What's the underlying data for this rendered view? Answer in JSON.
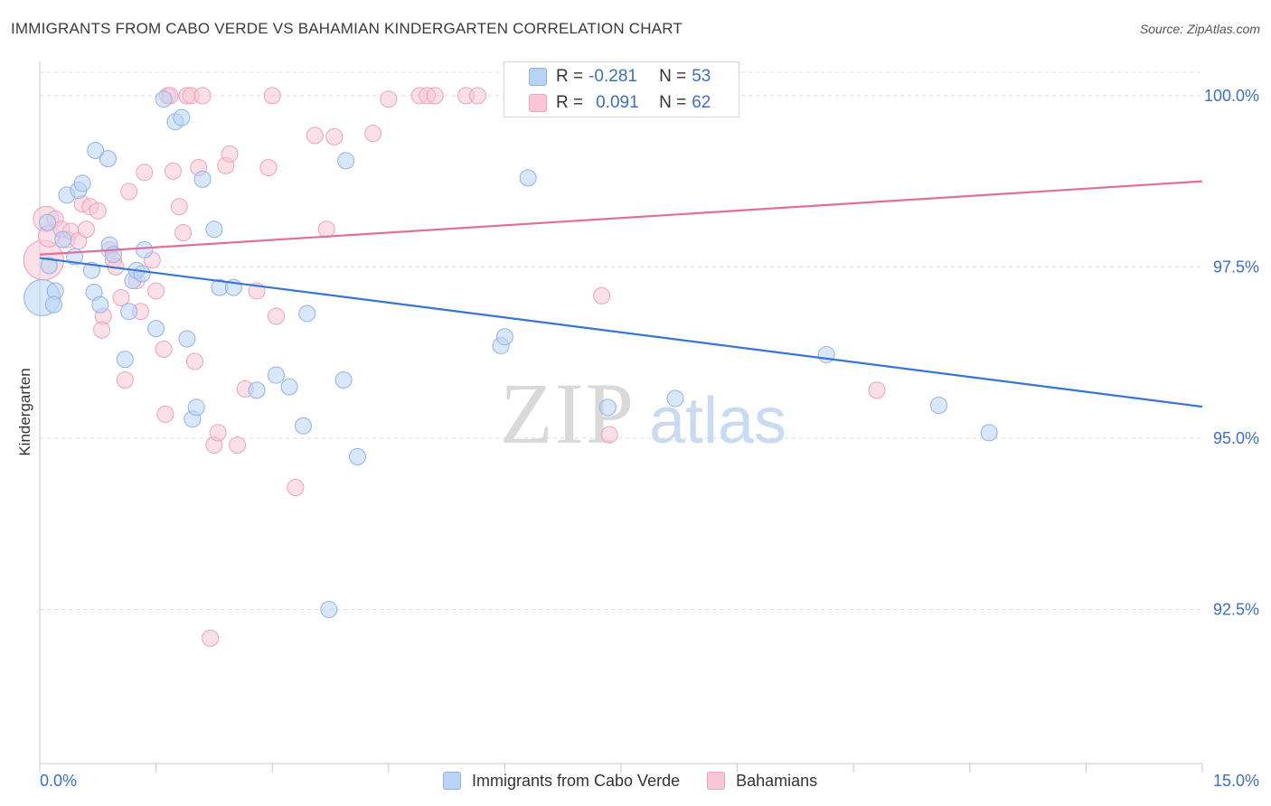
{
  "title": "IMMIGRANTS FROM CABO VERDE VS BAHAMIAN KINDERGARTEN CORRELATION CHART",
  "source": "Source: ZipAtlas.com",
  "watermark": {
    "zip": "ZIP",
    "atlas": "atlas"
  },
  "colors": {
    "blue_fill": "#b9d3f5",
    "blue_stroke": "#8fb3e6",
    "blue_line": "#3575d3",
    "pink_fill": "#f8c6d6",
    "pink_stroke": "#eba3bb",
    "pink_line": "#e07098",
    "axis_label": "#3a6fc9",
    "grid": "#dcdcdc"
  },
  "stats": [
    {
      "r_label": "R = ",
      "r_value": "-0.281",
      "n_label": "N = ",
      "n_value": "53"
    },
    {
      "r_label": "R = ",
      "r_value": "0.091",
      "n_label": "N = ",
      "n_value": "62"
    }
  ],
  "chart_data": {
    "type": "scatter",
    "title": "IMMIGRANTS FROM CABO VERDE VS BAHAMIAN KINDERGARTEN CORRELATION CHART",
    "xlabel": "",
    "ylabel": "Kindergarten",
    "xlim": [
      0,
      15
    ],
    "ylim": [
      90.25,
      100.5
    ],
    "x_tick_labels": [
      "0.0%",
      "15.0%"
    ],
    "y_ticks": [
      92.5,
      95.0,
      97.5,
      100.0
    ],
    "y_tick_labels": [
      "92.5%",
      "95.0%",
      "97.5%",
      "100.0%"
    ],
    "grid": "horizontal dashed",
    "legend_position": "bottom-center",
    "series": [
      {
        "name": "Immigrants from Cabo Verde",
        "color": "#b9d3f5",
        "trend": {
          "x": [
            0,
            15
          ],
          "y": [
            97.63,
            95.46
          ]
        },
        "points": [
          [
            0.03,
            97.05,
            20
          ],
          [
            0.2,
            97.15,
            9
          ],
          [
            0.12,
            97.52,
            9
          ],
          [
            0.3,
            97.9,
            9
          ],
          [
            0.1,
            98.15,
            9
          ],
          [
            0.35,
            98.55,
            9
          ],
          [
            0.5,
            98.62,
            9
          ],
          [
            0.55,
            98.72,
            9
          ],
          [
            0.45,
            97.65,
            9
          ],
          [
            0.67,
            97.45,
            9
          ],
          [
            0.7,
            97.13,
            9
          ],
          [
            0.78,
            96.95,
            9
          ],
          [
            0.72,
            99.2,
            9
          ],
          [
            0.88,
            99.08,
            9
          ],
          [
            0.9,
            97.82,
            9
          ],
          [
            0.95,
            97.68,
            9
          ],
          [
            1.15,
            96.85,
            9
          ],
          [
            1.2,
            97.3,
            9
          ],
          [
            1.25,
            97.45,
            9
          ],
          [
            1.32,
            97.4,
            9
          ],
          [
            1.35,
            97.75,
            9
          ],
          [
            1.1,
            96.15,
            9
          ],
          [
            1.5,
            96.6,
            9
          ],
          [
            1.6,
            99.95,
            9
          ],
          [
            1.75,
            99.62,
            9
          ],
          [
            1.83,
            99.68,
            9
          ],
          [
            1.9,
            96.45,
            9
          ],
          [
            1.97,
            95.28,
            9
          ],
          [
            2.02,
            95.45,
            9
          ],
          [
            2.1,
            98.78,
            9
          ],
          [
            2.25,
            98.05,
            9
          ],
          [
            2.32,
            97.2,
            9
          ],
          [
            2.5,
            97.2,
            9
          ],
          [
            2.8,
            95.7,
            9
          ],
          [
            3.05,
            95.92,
            9
          ],
          [
            3.22,
            95.75,
            9
          ],
          [
            3.4,
            95.18,
            9
          ],
          [
            3.45,
            96.82,
            9
          ],
          [
            3.73,
            92.5,
            9
          ],
          [
            3.92,
            95.85,
            9
          ],
          [
            3.95,
            99.05,
            9
          ],
          [
            4.1,
            94.73,
            9
          ],
          [
            5.95,
            96.35,
            9
          ],
          [
            6.0,
            96.48,
            9
          ],
          [
            6.3,
            98.8,
            9
          ],
          [
            7.33,
            95.45,
            9
          ],
          [
            7.8,
            100.0,
            9
          ],
          [
            8.75,
            100.0,
            9
          ],
          [
            8.2,
            95.58,
            9
          ],
          [
            10.15,
            96.22,
            9
          ],
          [
            11.6,
            95.48,
            9
          ],
          [
            12.25,
            95.08,
            9
          ],
          [
            0.18,
            96.95,
            9
          ]
        ]
      },
      {
        "name": "Bahamians",
        "color": "#f8c6d6",
        "trend": {
          "x": [
            0,
            15
          ],
          "y": [
            97.68,
            98.75
          ]
        },
        "points": [
          [
            0.05,
            97.6,
            22
          ],
          [
            0.08,
            98.2,
            14
          ],
          [
            0.12,
            97.95,
            12
          ],
          [
            0.2,
            98.2,
            9
          ],
          [
            0.28,
            98.05,
            9
          ],
          [
            0.35,
            97.9,
            9
          ],
          [
            0.4,
            98.02,
            9
          ],
          [
            0.5,
            97.88,
            9
          ],
          [
            0.55,
            98.42,
            9
          ],
          [
            0.65,
            98.38,
            9
          ],
          [
            0.75,
            98.32,
            9
          ],
          [
            0.6,
            98.05,
            9
          ],
          [
            0.82,
            96.78,
            9
          ],
          [
            0.8,
            96.58,
            9
          ],
          [
            0.9,
            97.75,
            9
          ],
          [
            0.95,
            97.6,
            9
          ],
          [
            0.98,
            97.5,
            9
          ],
          [
            1.05,
            97.05,
            9
          ],
          [
            1.1,
            95.85,
            9
          ],
          [
            1.15,
            98.6,
            9
          ],
          [
            1.25,
            97.3,
            9
          ],
          [
            1.3,
            96.85,
            9
          ],
          [
            1.35,
            98.88,
            9
          ],
          [
            1.45,
            97.6,
            9
          ],
          [
            1.5,
            97.15,
            9
          ],
          [
            1.6,
            96.3,
            9
          ],
          [
            1.62,
            95.35,
            9
          ],
          [
            1.65,
            100.0,
            9
          ],
          [
            1.68,
            100.0,
            9
          ],
          [
            1.72,
            98.9,
            9
          ],
          [
            1.8,
            98.38,
            9
          ],
          [
            1.85,
            98.0,
            9
          ],
          [
            1.9,
            100.0,
            9
          ],
          [
            1.95,
            100.0,
            9
          ],
          [
            2.0,
            96.12,
            9
          ],
          [
            2.05,
            98.95,
            9
          ],
          [
            2.1,
            100.0,
            9
          ],
          [
            2.2,
            92.08,
            9
          ],
          [
            2.25,
            94.9,
            9
          ],
          [
            2.3,
            95.08,
            9
          ],
          [
            2.4,
            98.98,
            9
          ],
          [
            2.45,
            99.15,
            9
          ],
          [
            2.55,
            94.9,
            9
          ],
          [
            2.65,
            95.72,
            9
          ],
          [
            2.8,
            97.15,
            9
          ],
          [
            2.95,
            98.95,
            9
          ],
          [
            3.0,
            100.0,
            9
          ],
          [
            3.05,
            96.78,
            9
          ],
          [
            3.3,
            94.28,
            9
          ],
          [
            3.55,
            99.42,
            9
          ],
          [
            3.7,
            98.05,
            9
          ],
          [
            3.8,
            99.4,
            9
          ],
          [
            4.3,
            99.45,
            9
          ],
          [
            4.5,
            99.95,
            9
          ],
          [
            4.9,
            100.0,
            9
          ],
          [
            5.0,
            100.0,
            9
          ],
          [
            5.1,
            100.0,
            9
          ],
          [
            5.5,
            100.0,
            9
          ],
          [
            5.65,
            100.0,
            9
          ],
          [
            7.25,
            97.08,
            9
          ],
          [
            7.35,
            95.05,
            9
          ],
          [
            10.8,
            95.7,
            9
          ]
        ]
      }
    ]
  }
}
